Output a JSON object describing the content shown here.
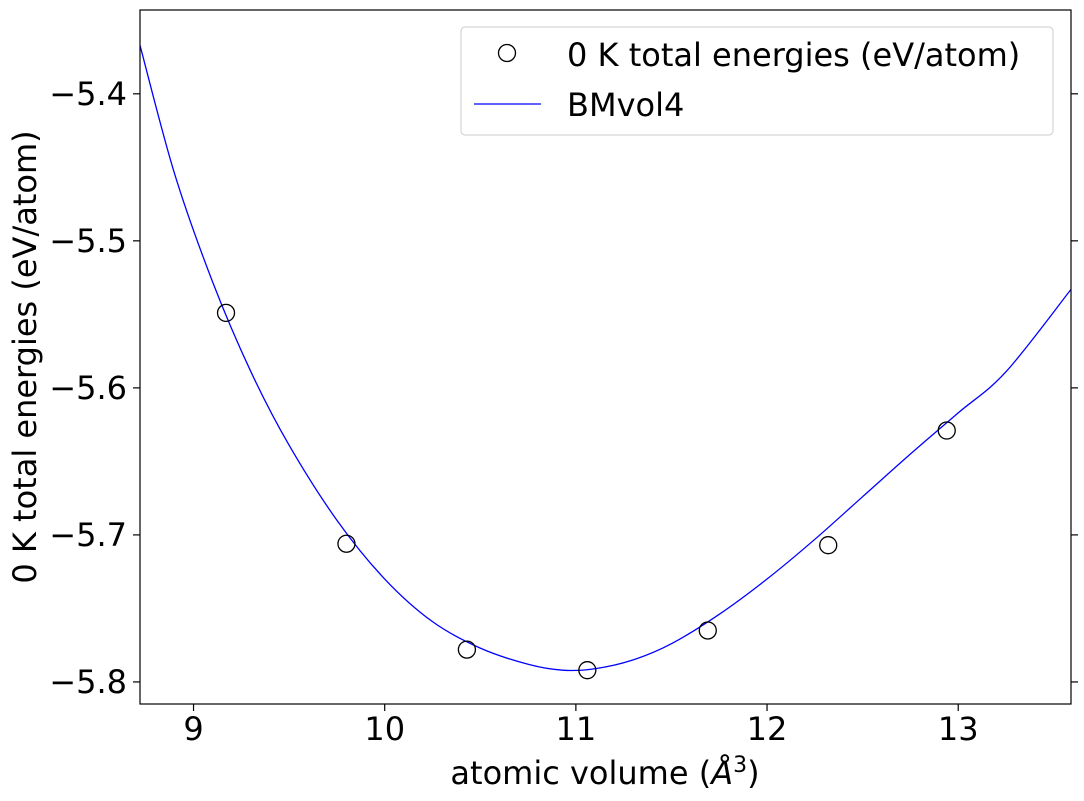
{
  "chart_data": {
    "type": "scatter",
    "title": "",
    "xlabel": "atomic volume (",
    "xlabel_unit": "Å",
    "xlabel_exponent": "3",
    "xlabel_close": ")",
    "ylabel": "0 K total energies (eV/atom)",
    "xlim": [
      8.72,
      13.59
    ],
    "ylim": [
      -5.815,
      -5.343
    ],
    "xticks": [
      9,
      10,
      11,
      12,
      13
    ],
    "yticks": [
      -5.4,
      -5.5,
      -5.6,
      -5.7,
      -5.8
    ],
    "ytick_labels": [
      "−5.4",
      "−5.5",
      "−5.6",
      "−5.7",
      "−5.8"
    ],
    "grid": false,
    "legend_position": "top-right",
    "series": [
      {
        "name": "0 K total energies (eV/atom)",
        "kind": "markers",
        "marker": "open-circle",
        "color": "#000000",
        "x": [
          9.17,
          9.8,
          10.43,
          11.06,
          11.69,
          12.32,
          12.94
        ],
        "y": [
          -5.549,
          -5.706,
          -5.778,
          -5.792,
          -5.765,
          -5.707,
          -5.629
        ]
      },
      {
        "name": "BMvol4",
        "kind": "line",
        "color": "#0000ff",
        "x": [
          8.72,
          8.9,
          9.1,
          9.3,
          9.5,
          9.75,
          10.0,
          10.25,
          10.5,
          10.75,
          10.93,
          11.1,
          11.3,
          11.5,
          11.75,
          12.0,
          12.25,
          12.5,
          12.75,
          13.0,
          13.25,
          13.59
        ],
        "y": [
          -5.367,
          -5.454,
          -5.528,
          -5.589,
          -5.639,
          -5.69,
          -5.73,
          -5.759,
          -5.777,
          -5.788,
          -5.792,
          -5.791,
          -5.785,
          -5.774,
          -5.754,
          -5.73,
          -5.703,
          -5.674,
          -5.645,
          -5.617,
          -5.589,
          -5.533
        ]
      }
    ]
  }
}
